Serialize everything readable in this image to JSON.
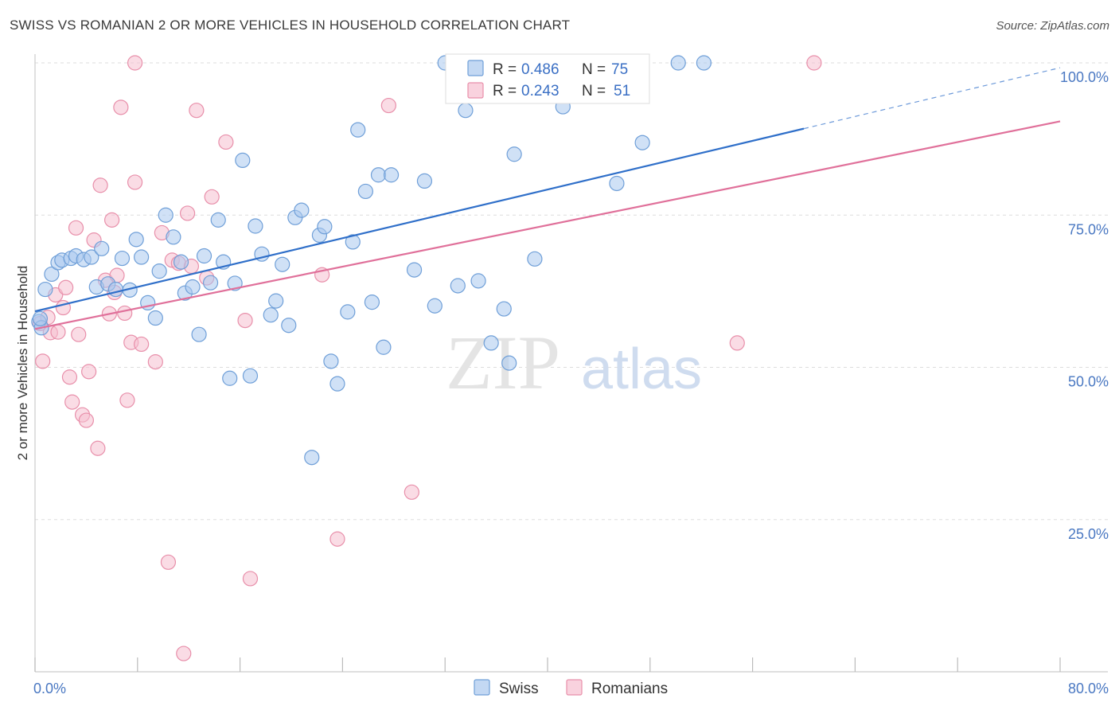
{
  "header": {
    "title": "SWISS VS ROMANIAN 2 OR MORE VEHICLES IN HOUSEHOLD CORRELATION CHART",
    "source": "Source: ZipAtlas.com"
  },
  "watermark": {
    "zip": "ZIP",
    "atlas": "atlas"
  },
  "colors": {
    "swiss_fill": "#aac8ee",
    "swiss_stroke": "#6f9fd8",
    "swiss_line": "#2f6fc9",
    "romanian_fill": "#f6bfd0",
    "romanian_stroke": "#e88faa",
    "romanian_line": "#e0709a",
    "grid": "#dddddd",
    "tick_label": "#4a78c2"
  },
  "legend": {
    "rows": [
      {
        "r_label": "R = ",
        "r_value": "0.486",
        "n_label": "N = ",
        "n_value": "75"
      },
      {
        "r_label": "R = ",
        "r_value": "0.243",
        "n_label": "N = ",
        "n_value": "51"
      }
    ]
  },
  "bottom_legend": {
    "items": [
      "Swiss",
      "Romanians"
    ]
  },
  "chart_data": {
    "type": "scatter",
    "title": "SWISS VS ROMANIAN 2 OR MORE VEHICLES IN HOUSEHOLD CORRELATION CHART",
    "xlabel": "",
    "ylabel": "2 or more Vehicles in Household",
    "xlim": [
      0,
      80
    ],
    "ylim": [
      0,
      102
    ],
    "x_tick_labels": [
      "0.0%",
      "80.0%"
    ],
    "y_ticks": [
      25,
      50,
      75,
      100
    ],
    "y_tick_labels": [
      "25.0%",
      "50.0%",
      "75.0%",
      "100.0%"
    ],
    "grid": true,
    "legend_position": "top-center",
    "series": [
      {
        "name": "Swiss",
        "r": 0.486,
        "n": 75,
        "trend": {
          "x0": 0,
          "y0": 59.2,
          "x1": 60,
          "y1": 89.2,
          "dash_to_x": 80,
          "dash_to_y": 99.2
        },
        "points": [
          [
            0.3,
            57.5
          ],
          [
            0.5,
            56.5
          ],
          [
            0.8,
            62.8
          ],
          [
            1.3,
            65.3
          ],
          [
            1.8,
            67.2
          ],
          [
            2.1,
            67.6
          ],
          [
            2.8,
            67.9
          ],
          [
            3.2,
            68.3
          ],
          [
            3.8,
            67.7
          ],
          [
            4.4,
            68.1
          ],
          [
            4.8,
            63.2
          ],
          [
            5.2,
            69.5
          ],
          [
            5.7,
            63.7
          ],
          [
            6.3,
            62.8
          ],
          [
            6.8,
            67.9
          ],
          [
            7.4,
            62.7
          ],
          [
            7.9,
            71.0
          ],
          [
            8.3,
            68.1
          ],
          [
            8.8,
            60.6
          ],
          [
            9.4,
            58.1
          ],
          [
            9.7,
            65.8
          ],
          [
            10.2,
            75.0
          ],
          [
            10.8,
            71.4
          ],
          [
            11.4,
            67.3
          ],
          [
            11.7,
            62.2
          ],
          [
            12.3,
            63.2
          ],
          [
            12.8,
            55.4
          ],
          [
            13.2,
            68.3
          ],
          [
            13.7,
            63.9
          ],
          [
            14.3,
            74.2
          ],
          [
            14.7,
            67.3
          ],
          [
            15.2,
            48.2
          ],
          [
            15.6,
            63.8
          ],
          [
            16.2,
            84.0
          ],
          [
            16.8,
            48.6
          ],
          [
            17.2,
            73.2
          ],
          [
            17.7,
            68.6
          ],
          [
            18.4,
            58.6
          ],
          [
            18.8,
            60.9
          ],
          [
            19.3,
            66.9
          ],
          [
            19.8,
            56.9
          ],
          [
            20.3,
            74.6
          ],
          [
            20.8,
            75.8
          ],
          [
            21.6,
            35.2
          ],
          [
            22.2,
            71.7
          ],
          [
            22.6,
            73.1
          ],
          [
            23.1,
            51.0
          ],
          [
            23.6,
            47.3
          ],
          [
            24.4,
            59.1
          ],
          [
            24.8,
            70.6
          ],
          [
            25.2,
            89.0
          ],
          [
            25.8,
            78.9
          ],
          [
            26.3,
            60.7
          ],
          [
            26.8,
            81.6
          ],
          [
            27.2,
            53.3
          ],
          [
            27.8,
            81.6
          ],
          [
            29.6,
            66.0
          ],
          [
            30.4,
            80.6
          ],
          [
            31.2,
            60.1
          ],
          [
            32.0,
            100.0
          ],
          [
            33.0,
            63.4
          ],
          [
            33.6,
            92.2
          ],
          [
            34.6,
            64.2
          ],
          [
            35.6,
            54.0
          ],
          [
            36.6,
            59.6
          ],
          [
            37.0,
            50.7
          ],
          [
            37.4,
            85.0
          ],
          [
            39.0,
            67.8
          ],
          [
            41.2,
            92.8
          ],
          [
            42.6,
            100.0
          ],
          [
            45.4,
            80.2
          ],
          [
            47.4,
            86.9
          ],
          [
            50.2,
            100.0
          ],
          [
            52.2,
            100.0
          ],
          [
            0.4,
            58.0
          ]
        ]
      },
      {
        "name": "Romanians",
        "r": 0.243,
        "n": 51,
        "trend": {
          "x0": 0,
          "y0": 56.3,
          "x1": 80,
          "y1": 90.4
        },
        "points": [
          [
            0.4,
            57.2
          ],
          [
            0.6,
            51.0
          ],
          [
            1.0,
            58.2
          ],
          [
            1.2,
            55.7
          ],
          [
            1.6,
            61.9
          ],
          [
            1.8,
            55.8
          ],
          [
            2.2,
            59.8
          ],
          [
            2.4,
            63.1
          ],
          [
            2.7,
            48.4
          ],
          [
            2.9,
            44.3
          ],
          [
            3.2,
            72.9
          ],
          [
            3.4,
            55.4
          ],
          [
            3.7,
            42.2
          ],
          [
            4.0,
            41.3
          ],
          [
            4.2,
            49.3
          ],
          [
            4.6,
            70.9
          ],
          [
            4.9,
            36.7
          ],
          [
            5.1,
            79.9
          ],
          [
            5.5,
            64.3
          ],
          [
            5.8,
            58.8
          ],
          [
            6.0,
            74.2
          ],
          [
            6.2,
            62.3
          ],
          [
            6.4,
            65.1
          ],
          [
            6.7,
            92.7
          ],
          [
            7.0,
            58.9
          ],
          [
            7.2,
            44.6
          ],
          [
            7.5,
            54.1
          ],
          [
            7.8,
            80.4
          ],
          [
            7.8,
            100.0
          ],
          [
            8.3,
            53.8
          ],
          [
            9.4,
            50.9
          ],
          [
            9.9,
            72.1
          ],
          [
            10.4,
            18.0
          ],
          [
            10.7,
            67.6
          ],
          [
            11.2,
            67.1
          ],
          [
            11.6,
            3.0
          ],
          [
            11.9,
            75.3
          ],
          [
            12.2,
            66.6
          ],
          [
            12.6,
            92.2
          ],
          [
            13.4,
            64.7
          ],
          [
            13.8,
            78.0
          ],
          [
            14.9,
            87.0
          ],
          [
            16.4,
            57.7
          ],
          [
            16.8,
            15.3
          ],
          [
            22.4,
            65.2
          ],
          [
            23.6,
            21.8
          ],
          [
            27.6,
            93.0
          ],
          [
            29.4,
            29.5
          ],
          [
            32.8,
            100.0
          ],
          [
            54.8,
            54.0
          ],
          [
            60.8,
            100.0
          ]
        ]
      }
    ]
  }
}
